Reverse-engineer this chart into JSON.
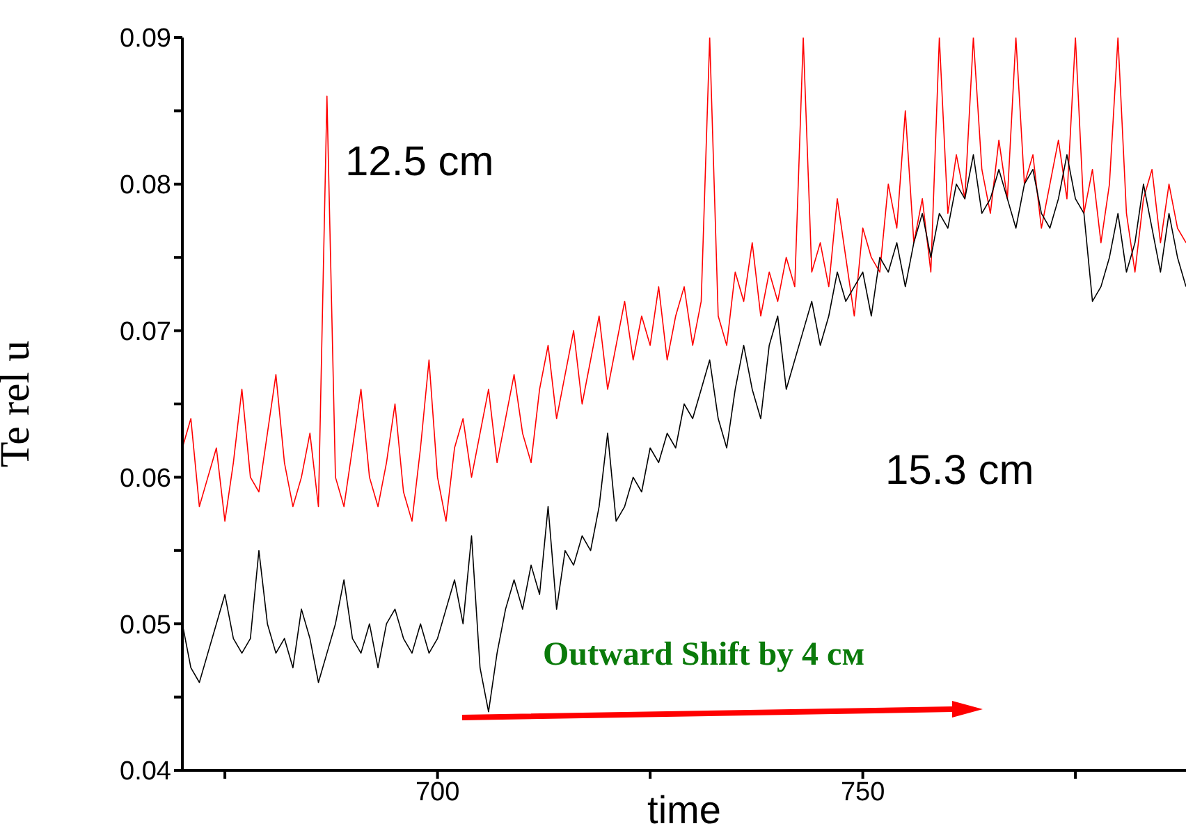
{
  "chart_data": {
    "type": "line",
    "xlabel": "time",
    "ylabel": "Te rel u",
    "xlim": [
      670,
      788
    ],
    "ylim": [
      0.04,
      0.09
    ],
    "xticks": [
      {
        "value": 675,
        "label": null
      },
      700,
      {
        "value": 725,
        "label": null
      },
      750,
      {
        "value": 775,
        "label": null
      }
    ],
    "yticks": [
      0.04,
      {
        "value": 0.045,
        "label": null
      },
      0.05,
      {
        "value": 0.055,
        "label": null
      },
      0.06,
      {
        "value": 0.065,
        "label": null
      },
      0.07,
      {
        "value": 0.075,
        "label": null
      },
      0.08,
      {
        "value": 0.085,
        "label": null
      },
      0.09
    ],
    "x": [
      670,
      671,
      672,
      673,
      674,
      675,
      676,
      677,
      678,
      679,
      680,
      681,
      682,
      683,
      684,
      685,
      686,
      687,
      688,
      689,
      690,
      691,
      692,
      693,
      694,
      695,
      696,
      697,
      698,
      699,
      700,
      701,
      702,
      703,
      704,
      705,
      706,
      707,
      708,
      709,
      710,
      711,
      712,
      713,
      714,
      715,
      716,
      717,
      718,
      719,
      720,
      721,
      722,
      723,
      724,
      725,
      726,
      727,
      728,
      729,
      730,
      731,
      732,
      733,
      734,
      735,
      736,
      737,
      738,
      739,
      740,
      741,
      742,
      743,
      744,
      745,
      746,
      747,
      748,
      749,
      750,
      751,
      752,
      753,
      754,
      755,
      756,
      757,
      758,
      759,
      760,
      761,
      762,
      763,
      764,
      765,
      766,
      767,
      768,
      769,
      770,
      771,
      772,
      773,
      774,
      775,
      776,
      777,
      778,
      779,
      780,
      781,
      782,
      783,
      784,
      785,
      786,
      787,
      788
    ],
    "series": [
      {
        "color": "#ff0000",
        "values": [
          0.062,
          0.064,
          0.058,
          0.06,
          0.062,
          0.057,
          0.061,
          0.066,
          0.06,
          0.059,
          0.063,
          0.067,
          0.061,
          0.058,
          0.06,
          0.063,
          0.058,
          0.086,
          0.06,
          0.058,
          0.062,
          0.066,
          0.06,
          0.058,
          0.061,
          0.065,
          0.059,
          0.057,
          0.062,
          0.068,
          0.06,
          0.057,
          0.062,
          0.064,
          0.06,
          0.063,
          0.066,
          0.061,
          0.064,
          0.067,
          0.063,
          0.061,
          0.066,
          0.069,
          0.064,
          0.067,
          0.07,
          0.065,
          0.068,
          0.071,
          0.066,
          0.069,
          0.072,
          0.068,
          0.071,
          0.069,
          0.073,
          0.068,
          0.071,
          0.073,
          0.069,
          0.072,
          0.09,
          0.071,
          0.069,
          0.074,
          0.072,
          0.076,
          0.071,
          0.074,
          0.072,
          0.075,
          0.073,
          0.09,
          0.074,
          0.076,
          0.073,
          0.079,
          0.075,
          0.071,
          0.077,
          0.075,
          0.074,
          0.08,
          0.077,
          0.085,
          0.076,
          0.079,
          0.074,
          0.09,
          0.078,
          0.082,
          0.079,
          0.09,
          0.081,
          0.078,
          0.083,
          0.079,
          0.09,
          0.08,
          0.082,
          0.077,
          0.08,
          0.083,
          0.079,
          0.09,
          0.078,
          0.081,
          0.076,
          0.08,
          0.09,
          0.078,
          0.074,
          0.079,
          0.081,
          0.076,
          0.08,
          0.077,
          0.076
        ]
      },
      {
        "color": "#000000",
        "values": [
          0.05,
          0.047,
          0.046,
          0.048,
          0.05,
          0.052,
          0.049,
          0.048,
          0.049,
          0.055,
          0.05,
          0.048,
          0.049,
          0.047,
          0.051,
          0.049,
          0.046,
          0.048,
          0.05,
          0.053,
          0.049,
          0.048,
          0.05,
          0.047,
          0.05,
          0.051,
          0.049,
          0.048,
          0.05,
          0.048,
          0.049,
          0.051,
          0.053,
          0.05,
          0.056,
          0.047,
          0.044,
          0.048,
          0.051,
          0.053,
          0.051,
          0.054,
          0.052,
          0.058,
          0.051,
          0.055,
          0.054,
          0.056,
          0.055,
          0.058,
          0.063,
          0.057,
          0.058,
          0.06,
          0.059,
          0.062,
          0.061,
          0.063,
          0.062,
          0.065,
          0.064,
          0.066,
          0.068,
          0.064,
          0.062,
          0.066,
          0.069,
          0.066,
          0.064,
          0.069,
          0.071,
          0.066,
          0.068,
          0.07,
          0.072,
          0.069,
          0.071,
          0.074,
          0.072,
          0.073,
          0.074,
          0.071,
          0.075,
          0.074,
          0.076,
          0.073,
          0.076,
          0.078,
          0.075,
          0.078,
          0.077,
          0.08,
          0.079,
          0.082,
          0.078,
          0.079,
          0.081,
          0.079,
          0.077,
          0.08,
          0.081,
          0.078,
          0.077,
          0.079,
          0.082,
          0.079,
          0.078,
          0.072,
          0.073,
          0.075,
          0.078,
          0.074,
          0.076,
          0.08,
          0.077,
          0.074,
          0.078,
          0.075,
          0.073
        ]
      }
    ],
    "annotations": [
      "12.5 cm",
      "15.3 cm",
      "Outward Shift by 4 см"
    ]
  }
}
